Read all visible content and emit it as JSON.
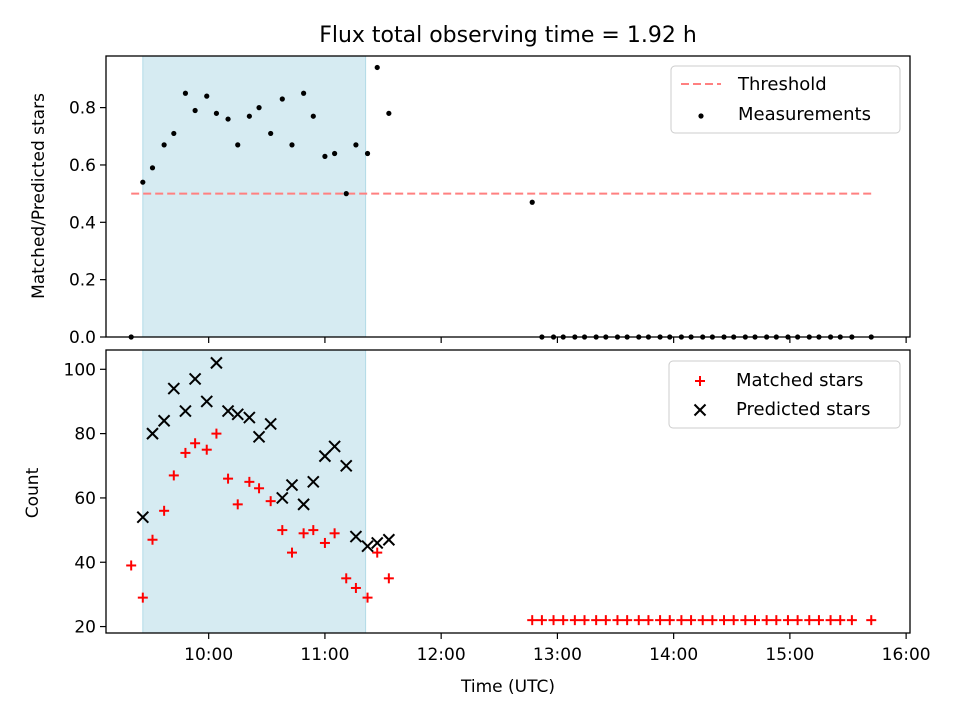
{
  "figure_title": "Flux total observing time = 1.92 h",
  "colors": {
    "shade": "#add8e6",
    "threshold": "#ff8080",
    "measurement": "#000000",
    "matched": "#ff0000",
    "predicted": "#000000"
  },
  "chart_data": [
    {
      "type": "scatter",
      "ylabel": "Matched/Predicted stars",
      "xlim": [
        "09:07",
        "16:02"
      ],
      "ylim": [
        0,
        0.98
      ],
      "yticks": [
        "0.0",
        "0.2",
        "0.4",
        "0.6",
        "0.8"
      ],
      "shaded_region": [
        "09:26",
        "11:21"
      ],
      "threshold": {
        "y": 0.5,
        "x": [
          "09:20",
          "15:42"
        ]
      },
      "legend": {
        "position": "upper-right",
        "entries": [
          "Threshold",
          "Measurements"
        ]
      },
      "series": [
        {
          "name": "Measurements",
          "marker": "dot",
          "x": [
            "09:20",
            "09:26",
            "09:31",
            "09:37",
            "09:42",
            "09:48",
            "09:53",
            "09:59",
            "10:04",
            "10:10",
            "10:15",
            "10:21",
            "10:26",
            "10:32",
            "10:38",
            "10:43",
            "10:49",
            "10:54",
            "11:00",
            "11:05",
            "11:11",
            "11:16",
            "11:22",
            "11:27",
            "11:33",
            "12:47",
            "12:52",
            "12:58",
            "13:03",
            "13:09",
            "13:14",
            "13:20",
            "13:25",
            "13:31",
            "13:36",
            "13:42",
            "13:47",
            "13:53",
            "13:58",
            "14:04",
            "14:09",
            "14:15",
            "14:20",
            "14:26",
            "14:31",
            "14:37",
            "14:42",
            "14:48",
            "14:53",
            "14:59",
            "15:04",
            "15:10",
            "15:15",
            "15:21",
            "15:26",
            "15:32",
            "15:42"
          ],
          "y": [
            0,
            0.54,
            0.59,
            0.67,
            0.71,
            0.85,
            0.79,
            0.84,
            0.78,
            0.76,
            0.67,
            0.77,
            0.8,
            0.71,
            0.83,
            0.67,
            0.85,
            0.77,
            0.63,
            0.64,
            0.5,
            0.67,
            0.64,
            0.94,
            0.78,
            0.47,
            0,
            0,
            0,
            0,
            0,
            0,
            0,
            0,
            0,
            0,
            0,
            0,
            0,
            0,
            0,
            0,
            0,
            0,
            0,
            0,
            0,
            0,
            0,
            0,
            0,
            0,
            0,
            0,
            0,
            0,
            0
          ]
        }
      ]
    },
    {
      "type": "scatter",
      "xlabel": "Time (UTC)",
      "ylabel": "Count",
      "xlim": [
        "09:07",
        "16:02"
      ],
      "ylim": [
        18,
        106
      ],
      "yticks": [
        "20",
        "40",
        "60",
        "80",
        "100"
      ],
      "xticks": [
        "10:00",
        "11:00",
        "12:00",
        "13:00",
        "14:00",
        "15:00",
        "16:00"
      ],
      "shaded_region": [
        "09:26",
        "11:21"
      ],
      "legend": {
        "position": "upper-right",
        "entries": [
          "Matched stars",
          "Predicted stars"
        ]
      },
      "series": [
        {
          "name": "Matched stars",
          "marker": "plus",
          "x": [
            "09:20",
            "09:26",
            "09:31",
            "09:37",
            "09:42",
            "09:48",
            "09:53",
            "09:59",
            "10:04",
            "10:10",
            "10:15",
            "10:21",
            "10:26",
            "10:32",
            "10:38",
            "10:43",
            "10:49",
            "10:54",
            "11:00",
            "11:05",
            "11:11",
            "11:16",
            "11:22",
            "11:27",
            "11:33",
            "12:47",
            "12:52",
            "12:58",
            "13:03",
            "13:09",
            "13:14",
            "13:20",
            "13:25",
            "13:31",
            "13:36",
            "13:42",
            "13:47",
            "13:53",
            "13:58",
            "14:04",
            "14:09",
            "14:15",
            "14:20",
            "14:26",
            "14:31",
            "14:37",
            "14:42",
            "14:48",
            "14:53",
            "14:59",
            "15:04",
            "15:10",
            "15:15",
            "15:21",
            "15:26",
            "15:32",
            "15:42"
          ],
          "y": [
            39,
            29,
            47,
            56,
            67,
            74,
            77,
            75,
            80,
            66,
            58,
            65,
            63,
            59,
            50,
            43,
            49,
            50,
            46,
            49,
            35,
            32,
            29,
            43,
            35,
            22,
            22,
            22,
            22,
            22,
            22,
            22,
            22,
            22,
            22,
            22,
            22,
            22,
            22,
            22,
            22,
            22,
            22,
            22,
            22,
            22,
            22,
            22,
            22,
            22,
            22,
            22,
            22,
            22,
            22,
            22,
            22
          ]
        },
        {
          "name": "Predicted stars",
          "marker": "x",
          "x": [
            "09:26",
            "09:31",
            "09:37",
            "09:42",
            "09:48",
            "09:53",
            "09:59",
            "10:04",
            "10:10",
            "10:15",
            "10:21",
            "10:26",
            "10:32",
            "10:38",
            "10:43",
            "10:49",
            "10:54",
            "11:00",
            "11:05",
            "11:11",
            "11:16",
            "11:22",
            "11:27",
            "11:33"
          ],
          "y": [
            54,
            80,
            84,
            94,
            87,
            97,
            90,
            102,
            87,
            86,
            85,
            79,
            83,
            60,
            64,
            58,
            65,
            73,
            76,
            70,
            48,
            45,
            46,
            47
          ]
        }
      ]
    }
  ]
}
